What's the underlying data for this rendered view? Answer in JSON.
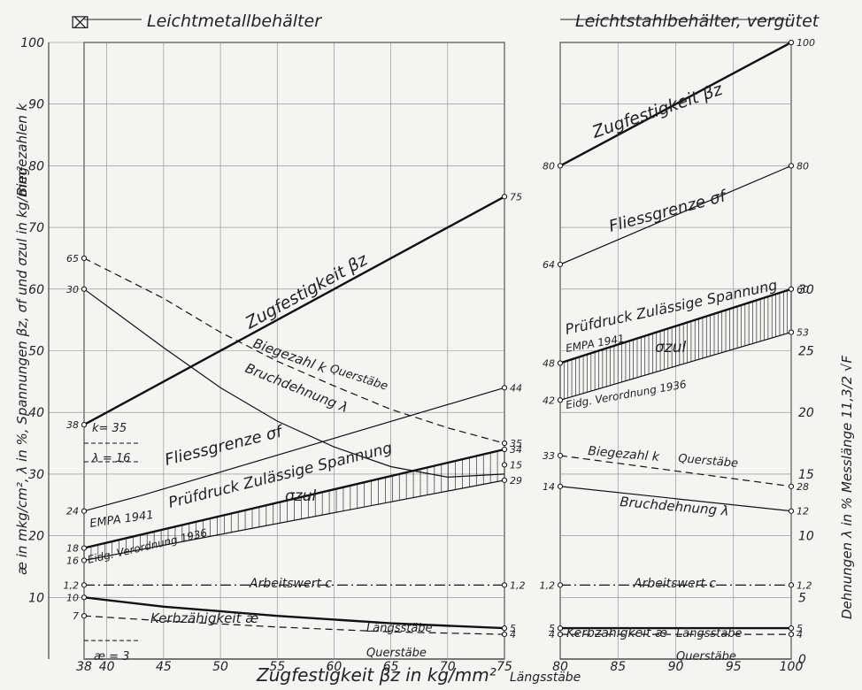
{
  "chart_data": {
    "type": "line",
    "header_left": "Leichtmetallbehälter",
    "header_right": "Leichtstahlbehälter, vergütet",
    "header_marker": "⌧",
    "xlabel": "Zugfestigkeit βz in kg/mm²",
    "xlabel_note": "Längsstäbe",
    "ylabel_left": "æ in mkg/cm², λ in %, Spannungen βz, σf und σzul in kg/mm²",
    "ylabel_biegezahlen": "Biegezahlen k",
    "ylabel_right": "Dehnungen λ in % Messlänge 11,3/2 √F",
    "x_ticks_left": [
      "38",
      "40",
      "45",
      "50",
      "55",
      "60",
      "65",
      "70",
      "75"
    ],
    "x_ticks_right": [
      "80",
      "85",
      "90",
      "95",
      "100"
    ],
    "y_ticks_left": [
      "10",
      "20",
      "30",
      "40",
      "50",
      "60",
      "70",
      "80",
      "90",
      "100"
    ],
    "y_ticks_right": [
      "0",
      "5",
      "10",
      "15",
      "20",
      "25",
      "30"
    ],
    "left_panel": {
      "xlim": [
        38,
        75
      ],
      "ylim": [
        0,
        100
      ],
      "series": [
        {
          "name": "Zugfestigkeit βz",
          "x": [
            38,
            43,
            75
          ],
          "y": [
            38,
            43,
            75
          ],
          "style": "thick"
        },
        {
          "name": "Biegezahl k",
          "note": "Querstäbe",
          "x": [
            38,
            45,
            50,
            55,
            60,
            65,
            70,
            75
          ],
          "y": [
            65,
            58.5,
            53,
            48.3,
            44.3,
            40.5,
            37.5,
            35
          ],
          "style": "dashed"
        },
        {
          "name": "Bruchdehnung λ",
          "x": [
            38,
            45,
            50,
            55,
            60,
            65,
            70,
            75
          ],
          "y": [
            60,
            50.5,
            44,
            38.6,
            34.4,
            31.2,
            29.5,
            30
          ],
          "style": "thin"
        },
        {
          "name": "Fliessgrenze σf",
          "x": [
            38,
            43,
            75
          ],
          "y": [
            24,
            26.5,
            44
          ],
          "style": "thin"
        },
        {
          "name": "Prüfdruck Zulässige Spannung",
          "note": "EMPA 1941",
          "x": [
            38,
            75
          ],
          "y": [
            18,
            34
          ],
          "style": "thick"
        },
        {
          "name": "Eidg. Verordnung 1936",
          "x": [
            38,
            75
          ],
          "y": [
            16,
            29
          ],
          "style": "thin"
        },
        {
          "name": "Arbeitswert c",
          "x": [
            38,
            75
          ],
          "y": [
            12,
            12
          ],
          "style": "dashdot"
        },
        {
          "name": "Kerbzähigkeit æ",
          "note": "Längsstäbe",
          "x": [
            38,
            45,
            55,
            65,
            75
          ],
          "y": [
            10,
            8.5,
            7,
            5.8,
            5
          ],
          "style": "thick"
        },
        {
          "name": "Querstäbe",
          "x": [
            38,
            45,
            55,
            65,
            75
          ],
          "y": [
            7,
            6.2,
            5.2,
            4.4,
            4
          ],
          "style": "dashed"
        }
      ],
      "band_label": "σzul",
      "point_labels": [
        {
          "x": 75,
          "y": 75,
          "text": "75",
          "side": "right"
        },
        {
          "x": 38,
          "y": 65,
          "text": "65",
          "side": "left"
        },
        {
          "x": 38,
          "y": 60,
          "text": "30",
          "side": "left"
        },
        {
          "x": 38,
          "y": 38,
          "text": "38",
          "side": "left"
        },
        {
          "x": 38,
          "y": 24,
          "text": "24",
          "side": "left"
        },
        {
          "x": 38,
          "y": 18,
          "text": "18",
          "side": "left"
        },
        {
          "x": 38,
          "y": 16,
          "text": "16",
          "side": "left"
        },
        {
          "x": 38,
          "y": 12,
          "text": "1,2",
          "side": "left"
        },
        {
          "x": 38,
          "y": 10,
          "text": "10",
          "side": "left"
        },
        {
          "x": 38,
          "y": 7,
          "text": "7",
          "side": "left"
        },
        {
          "x": 75,
          "y": 44,
          "text": "44",
          "side": "right"
        },
        {
          "x": 75,
          "y": 35,
          "text": "35",
          "side": "right"
        },
        {
          "x": 75,
          "y": 34,
          "text": "34",
          "side": "right"
        },
        {
          "x": 75,
          "y": 31.5,
          "text": "15",
          "side": "right"
        },
        {
          "x": 75,
          "y": 29,
          "text": "29",
          "side": "right"
        },
        {
          "x": 75,
          "y": 12,
          "text": "1,2",
          "side": "right"
        },
        {
          "x": 75,
          "y": 5,
          "text": "5",
          "side": "right"
        },
        {
          "x": 75,
          "y": 4,
          "text": "4",
          "side": "right"
        }
      ],
      "dims": [
        {
          "text": "k= 35",
          "y": 35
        },
        {
          "text": "λ = 16",
          "y": 32
        },
        {
          "text": "æ = 3",
          "y": 3
        }
      ]
    },
    "right_panel": {
      "xlim": [
        80,
        100
      ],
      "ylim": [
        0,
        100
      ],
      "series": [
        {
          "name": "Zugfestigkeit βz",
          "x": [
            80,
            100
          ],
          "y": [
            80,
            100
          ],
          "style": "thick"
        },
        {
          "name": "Fliessgrenze σf",
          "x": [
            80,
            100
          ],
          "y": [
            64,
            80
          ],
          "style": "thin"
        },
        {
          "name": "Prüfdruck Zulässige Spannung",
          "note": "EMPA 1941",
          "x": [
            80,
            100
          ],
          "y": [
            48,
            60
          ],
          "style": "thick"
        },
        {
          "name": "Eidg. Verordnung 1936",
          "x": [
            80,
            100
          ],
          "y": [
            42,
            53
          ],
          "style": "thin"
        },
        {
          "name": "Biegezahl k",
          "note": "Querstäbe",
          "x": [
            80,
            100
          ],
          "y": [
            33,
            28
          ],
          "style": "dashed"
        },
        {
          "name": "Bruchdehnung λ",
          "x": [
            80,
            100
          ],
          "y": [
            28,
            24
          ],
          "style": "thin"
        },
        {
          "name": "Arbeitswert c",
          "x": [
            80,
            100
          ],
          "y": [
            12,
            12
          ],
          "style": "dashdot"
        },
        {
          "name": "Kerbzähigkeit æ",
          "note": "Längsstäbe",
          "x": [
            80,
            100
          ],
          "y": [
            5,
            5
          ],
          "style": "thick"
        },
        {
          "name": "Querstäbe",
          "x": [
            80,
            100
          ],
          "y": [
            4,
            4
          ],
          "style": "dashed"
        }
      ],
      "band_label": "σzul",
      "point_labels": [
        {
          "x": 80,
          "y": 80,
          "text": "80",
          "side": "left"
        },
        {
          "x": 80,
          "y": 64,
          "text": "64",
          "side": "left"
        },
        {
          "x": 80,
          "y": 48,
          "text": "48",
          "side": "left"
        },
        {
          "x": 80,
          "y": 42,
          "text": "42",
          "side": "left"
        },
        {
          "x": 80,
          "y": 33,
          "text": "33",
          "side": "left"
        },
        {
          "x": 80,
          "y": 28,
          "text": "14",
          "side": "left"
        },
        {
          "x": 80,
          "y": 12,
          "text": "1,2",
          "side": "left"
        },
        {
          "x": 80,
          "y": 5,
          "text": "5",
          "side": "left"
        },
        {
          "x": 80,
          "y": 4,
          "text": "4",
          "side": "left"
        },
        {
          "x": 100,
          "y": 100,
          "text": "100",
          "side": "right"
        },
        {
          "x": 100,
          "y": 80,
          "text": "80",
          "side": "right"
        },
        {
          "x": 100,
          "y": 60,
          "text": "60",
          "side": "right"
        },
        {
          "x": 100,
          "y": 53,
          "text": "53",
          "side": "right"
        },
        {
          "x": 100,
          "y": 28,
          "text": "28",
          "side": "right"
        },
        {
          "x": 100,
          "y": 24,
          "text": "12",
          "side": "right"
        },
        {
          "x": 100,
          "y": 12,
          "text": "1,2",
          "side": "right"
        },
        {
          "x": 100,
          "y": 5,
          "text": "5",
          "side": "right"
        },
        {
          "x": 100,
          "y": 4,
          "text": "4",
          "side": "right"
        }
      ]
    }
  }
}
